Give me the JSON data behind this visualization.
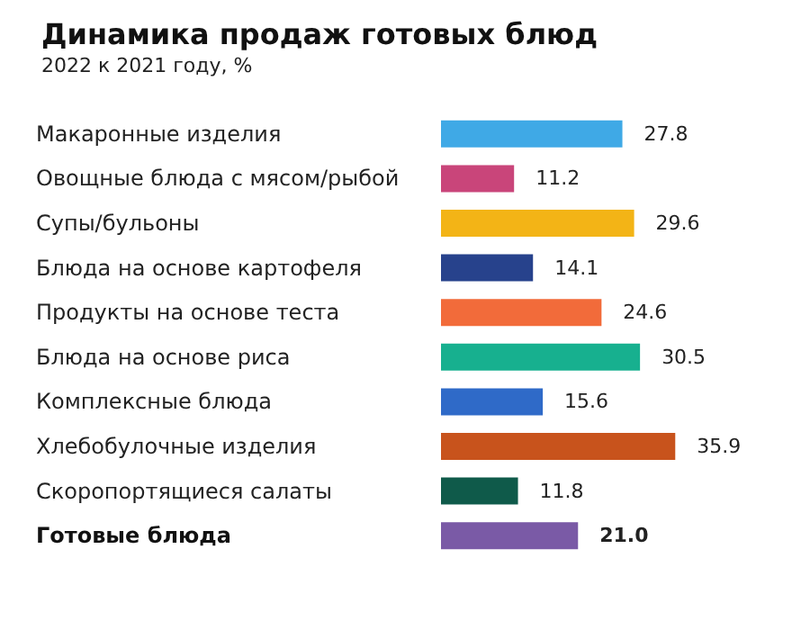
{
  "chart_data": {
    "type": "bar",
    "orientation": "horizontal",
    "title": "Динамика продаж готовых блюд",
    "subtitle": "2022 к 2021 году, %",
    "categories": [
      "Макаронные изделия",
      "Овощные блюда с мясом/рыбой",
      "Супы/бульоны",
      "Блюда на основе картофеля",
      "Продукты на основе теста",
      "Блюда на основе риса",
      "Комплексные блюда",
      "Хлебобулочные изделия",
      "Скоропортящиеся салаты",
      "Готовые блюда"
    ],
    "values": [
      27.8,
      11.2,
      29.6,
      14.1,
      24.6,
      30.5,
      15.6,
      35.9,
      11.8,
      21.0
    ],
    "value_labels": [
      "27.8",
      "11.2",
      "29.6",
      "14.1",
      "24.6",
      "30.5",
      "15.6",
      "35.9",
      "11.8",
      "21.0"
    ],
    "colors": [
      "#3fa9e6",
      "#c9457a",
      "#f3b416",
      "#27428c",
      "#f26b3a",
      "#17b08f",
      "#2f6ac8",
      "#c8531c",
      "#0f5a4a",
      "#7a5aa6"
    ]
  }
}
